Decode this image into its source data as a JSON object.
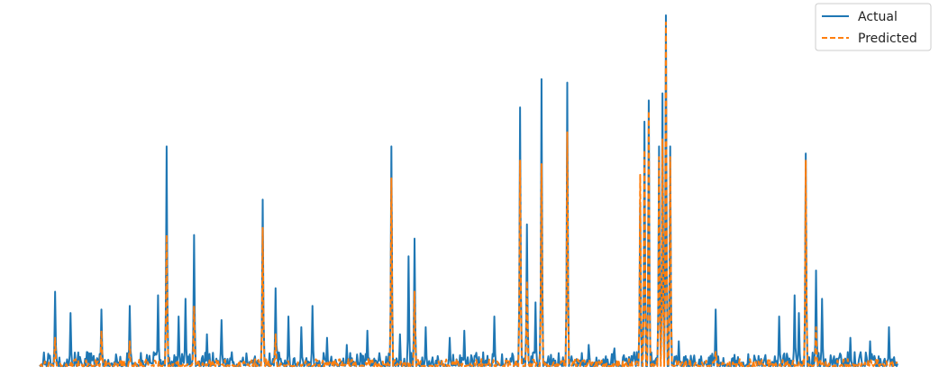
{
  "chart_data": {
    "type": "line",
    "title": "",
    "xlabel": "",
    "ylabel": "",
    "axes_visible": false,
    "grid": false,
    "legend_position": "top-right",
    "xlim": [
      0,
      1000
    ],
    "ylim": [
      0,
      100
    ],
    "series": [
      {
        "name": "Actual",
        "color": "#1f77b4",
        "line_style": "solid",
        "generator": "spiky",
        "baseline": 1,
        "noise": 4,
        "peaks": [
          [
            18,
            22
          ],
          [
            36,
            16
          ],
          [
            55,
            5
          ],
          [
            72,
            17
          ],
          [
            105,
            18
          ],
          [
            138,
            21
          ],
          [
            148,
            63
          ],
          [
            162,
            15
          ],
          [
            170,
            20
          ],
          [
            180,
            38
          ],
          [
            195,
            10
          ],
          [
            212,
            14
          ],
          [
            260,
            48
          ],
          [
            275,
            23
          ],
          [
            290,
            15
          ],
          [
            305,
            12
          ],
          [
            318,
            18
          ],
          [
            335,
            9
          ],
          [
            358,
            7
          ],
          [
            382,
            11
          ],
          [
            410,
            63
          ],
          [
            420,
            10
          ],
          [
            430,
            32
          ],
          [
            437,
            37
          ],
          [
            450,
            12
          ],
          [
            478,
            9
          ],
          [
            495,
            11
          ],
          [
            530,
            15
          ],
          [
            560,
            74
          ],
          [
            568,
            41
          ],
          [
            578,
            19
          ],
          [
            585,
            82
          ],
          [
            615,
            81
          ],
          [
            640,
            7
          ],
          [
            670,
            6
          ],
          [
            700,
            47
          ],
          [
            705,
            70
          ],
          [
            710,
            76
          ],
          [
            722,
            63
          ],
          [
            726,
            78
          ],
          [
            730,
            100
          ],
          [
            735,
            63
          ],
          [
            745,
            8
          ],
          [
            788,
            17
          ],
          [
            862,
            15
          ],
          [
            880,
            21
          ],
          [
            885,
            16
          ],
          [
            893,
            61
          ],
          [
            905,
            28
          ],
          [
            912,
            20
          ],
          [
            945,
            9
          ],
          [
            968,
            8
          ],
          [
            990,
            12
          ]
        ]
      },
      {
        "name": "Predicted",
        "color": "#ff7f0e",
        "line_style": "dashed",
        "generator": "spiky",
        "baseline": 1,
        "noise": 2,
        "peaks": [
          [
            18,
            9
          ],
          [
            72,
            11
          ],
          [
            105,
            8
          ],
          [
            148,
            38
          ],
          [
            180,
            18
          ],
          [
            260,
            40
          ],
          [
            275,
            10
          ],
          [
            410,
            54
          ],
          [
            437,
            22
          ],
          [
            560,
            59
          ],
          [
            568,
            25
          ],
          [
            585,
            58
          ],
          [
            615,
            67
          ],
          [
            700,
            55
          ],
          [
            705,
            62
          ],
          [
            710,
            73
          ],
          [
            722,
            60
          ],
          [
            726,
            65
          ],
          [
            730,
            98
          ],
          [
            735,
            60
          ],
          [
            788,
            5
          ],
          [
            893,
            59
          ],
          [
            905,
            12
          ]
        ]
      }
    ]
  }
}
